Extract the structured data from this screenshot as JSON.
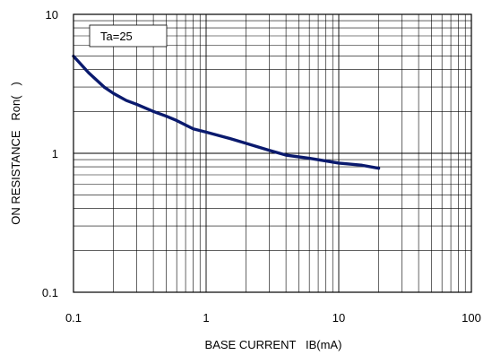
{
  "chart_data": {
    "type": "line",
    "xscale": "log",
    "yscale": "log",
    "xlim": [
      0.1,
      100
    ],
    "ylim": [
      0.1,
      10
    ],
    "grid": true,
    "xlabel": "BASE CURRENT   IB(mA)",
    "ylabel": "ON RESISTANCE   Ron(   )",
    "x_ticks": [
      {
        "value": 0.1,
        "label": "0.1"
      },
      {
        "value": 1,
        "label": "1"
      },
      {
        "value": 10,
        "label": "10"
      },
      {
        "value": 100,
        "label": "100"
      }
    ],
    "y_ticks": [
      {
        "value": 0.1,
        "label": "0.1"
      },
      {
        "value": 1,
        "label": "1"
      },
      {
        "value": 10,
        "label": "10"
      }
    ],
    "annotation": "Ta=25",
    "series": [
      {
        "color": "#0a1a6e",
        "points": [
          [
            0.1,
            5.0
          ],
          [
            0.13,
            3.8
          ],
          [
            0.17,
            3.0
          ],
          [
            0.2,
            2.7
          ],
          [
            0.25,
            2.4
          ],
          [
            0.3,
            2.25
          ],
          [
            0.4,
            2.0
          ],
          [
            0.5,
            1.85
          ],
          [
            0.6,
            1.72
          ],
          [
            0.8,
            1.5
          ],
          [
            1.0,
            1.42
          ],
          [
            1.5,
            1.28
          ],
          [
            2.0,
            1.18
          ],
          [
            3.0,
            1.05
          ],
          [
            4.0,
            0.97
          ],
          [
            6.0,
            0.92
          ],
          [
            8.0,
            0.88
          ],
          [
            10.0,
            0.85
          ],
          [
            15.0,
            0.82
          ],
          [
            20.0,
            0.78
          ]
        ]
      }
    ]
  }
}
